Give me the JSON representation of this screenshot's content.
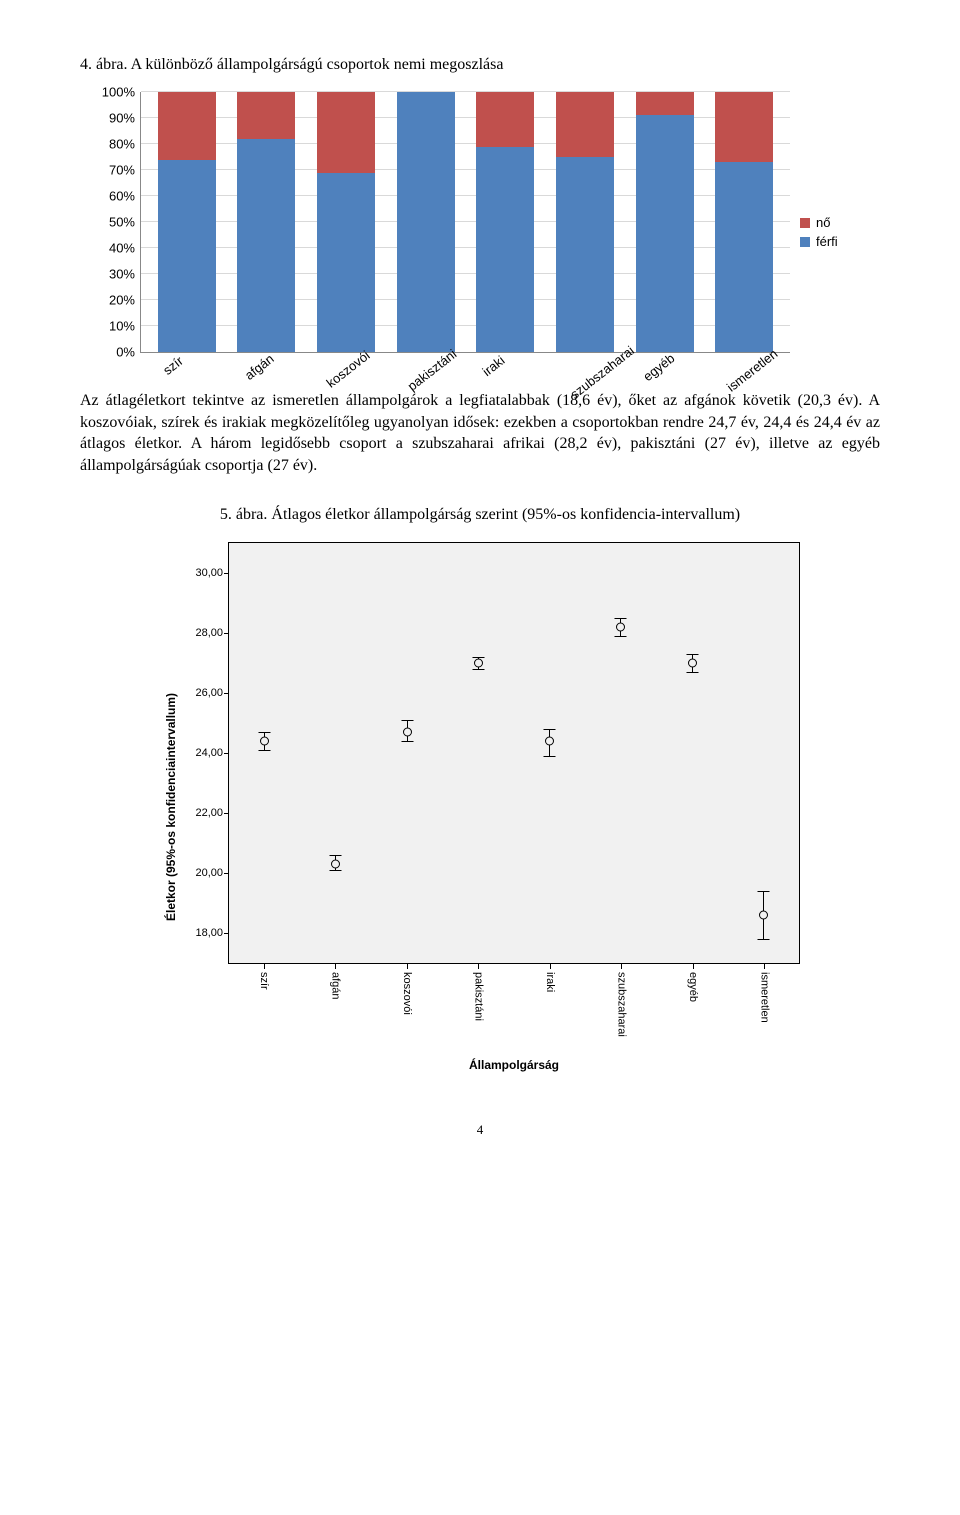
{
  "caption1": "4. ábra. A különböző állampolgárságú csoportok nemi megoszlása",
  "chart1": {
    "type": "stacked-bar",
    "categories": [
      "szír",
      "afgán",
      "koszovói",
      "pakisztáni",
      "iraki",
      "szubszaharai",
      "egyéb",
      "ismeretlen"
    ],
    "ytick_labels": [
      "0%",
      "10%",
      "20%",
      "30%",
      "40%",
      "50%",
      "60%",
      "70%",
      "80%",
      "90%",
      "100%"
    ],
    "ytick_pct": [
      0,
      10,
      20,
      30,
      40,
      50,
      60,
      70,
      80,
      90,
      100
    ],
    "series": [
      {
        "name": "férfi",
        "color": "#4f81bd",
        "values": [
          74,
          82,
          69,
          100,
          79,
          75,
          91,
          73
        ]
      },
      {
        "name": "nő",
        "color": "#c0504d",
        "values": [
          26,
          18,
          31,
          0,
          21,
          25,
          9,
          27
        ]
      }
    ],
    "legend": [
      {
        "label": "nő",
        "color": "#c0504d"
      },
      {
        "label": "férfi",
        "color": "#4f81bd"
      }
    ],
    "grid_color": "#d9d9d9",
    "axis_color": "#888888"
  },
  "para": "Az átlagéletkort tekintve az ismeretlen állampolgárok a legfiatalabbak (18,6 év), őket az afgánok követik (20,3 év). A koszovóiak, szírek és irakiak megközelítőleg ugyanolyan idősek: ezekben a csoportokban rendre 24,7 év, 24,4 és 24,4 év az átlagos életkor. A három legidősebb csoport a szubszaharai afrikai (28,2 év), pakisztáni (27 év), illetve az egyéb állampolgárságúak csoportja (27 év).",
  "caption2": "5. ábra. Átlagos életkor állampolgárság szerint (95%-os konfidencia-intervallum)",
  "chart2": {
    "type": "errorbar",
    "y_title": "Életkor (95%-os konfidenciaintervallum)",
    "x_title": "Állampolgárság",
    "categories": [
      "szír",
      "afgán",
      "koszovói",
      "pakisztáni",
      "iraki",
      "szubszaharai",
      "egyéb",
      "ismeretlen"
    ],
    "ymin": 17.0,
    "ymax": 31.0,
    "ytick_labels": [
      "18,00",
      "20,00",
      "22,00",
      "24,00",
      "26,00",
      "28,00",
      "30,00"
    ],
    "ytick_vals": [
      18,
      20,
      22,
      24,
      26,
      28,
      30
    ],
    "points": [
      {
        "mean": 24.4,
        "lo": 24.1,
        "hi": 24.7
      },
      {
        "mean": 20.3,
        "lo": 20.1,
        "hi": 20.6
      },
      {
        "mean": 24.7,
        "lo": 24.4,
        "hi": 25.1
      },
      {
        "mean": 27.0,
        "lo": 26.8,
        "hi": 27.2
      },
      {
        "mean": 24.4,
        "lo": 23.9,
        "hi": 24.8
      },
      {
        "mean": 28.2,
        "lo": 27.9,
        "hi": 28.5
      },
      {
        "mean": 27.0,
        "lo": 26.7,
        "hi": 27.3
      },
      {
        "mean": 18.6,
        "lo": 17.8,
        "hi": 19.4
      }
    ],
    "background": "#f1f1f1",
    "border_color": "#000000"
  },
  "page_number": "4"
}
